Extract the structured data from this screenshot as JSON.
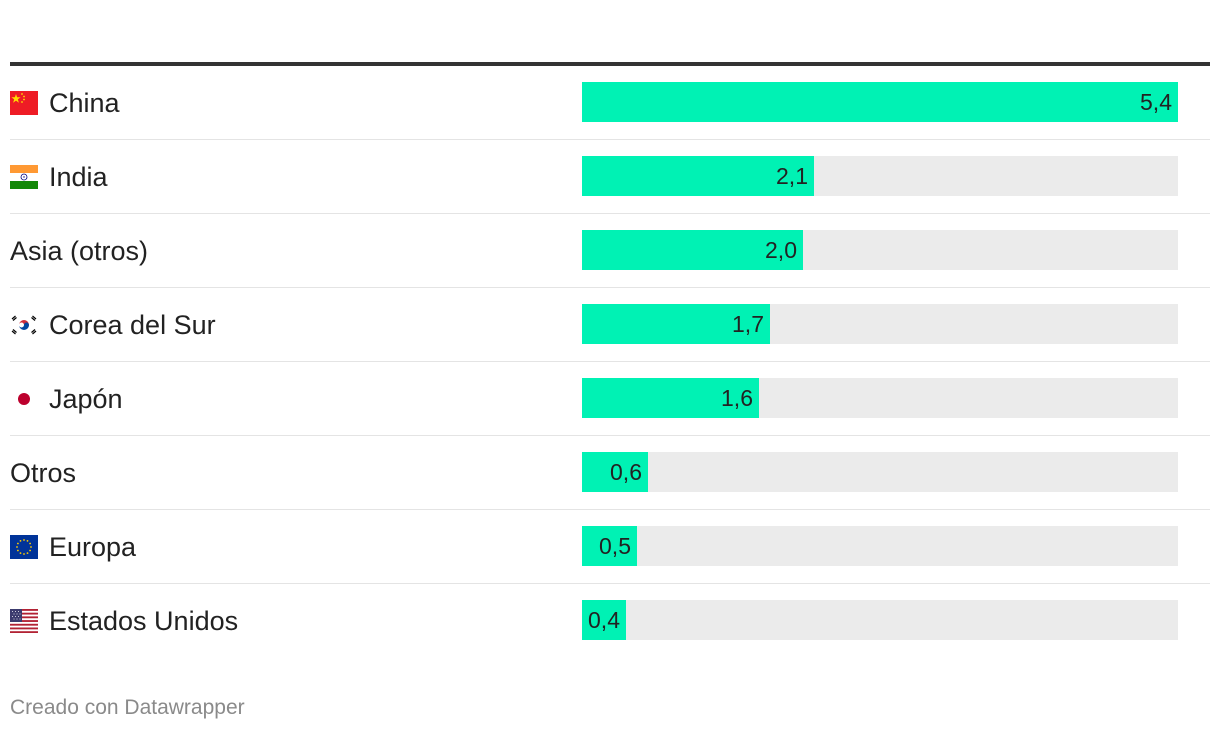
{
  "chart_data": {
    "type": "bar",
    "orientation": "horizontal",
    "categories": [
      "China",
      "India",
      "Asia (otros)",
      "Corea del Sur",
      "Japón",
      "Otros",
      "Europa",
      "Estados Unidos"
    ],
    "values": [
      5.4,
      2.1,
      2.0,
      1.7,
      1.6,
      0.6,
      0.5,
      0.4
    ],
    "value_labels": [
      "5,4",
      "2,1",
      "2,0",
      "1,7",
      "1,6",
      "0,6",
      "0,5",
      "0,4"
    ],
    "xlim": [
      0,
      5.4
    ],
    "bar_color": "#00f2b4",
    "track_color": "#ebebeb"
  },
  "rows": [
    {
      "label": "China",
      "value": 5.4,
      "display": "5,4",
      "flag": "china-flag-icon"
    },
    {
      "label": "India",
      "value": 2.1,
      "display": "2,1",
      "flag": "india-flag-icon"
    },
    {
      "label": "Asia (otros)",
      "value": 2.0,
      "display": "2,0",
      "flag": null
    },
    {
      "label": "Corea del Sur",
      "value": 1.7,
      "display": "1,7",
      "flag": "south-korea-flag-icon"
    },
    {
      "label": "Japón",
      "value": 1.6,
      "display": "1,6",
      "flag": "japan-flag-icon"
    },
    {
      "label": "Otros",
      "value": 0.6,
      "display": "0,6",
      "flag": null
    },
    {
      "label": "Europa",
      "value": 0.5,
      "display": "0,5",
      "flag": "eu-flag-icon"
    },
    {
      "label": "Estados Unidos",
      "value": 0.4,
      "display": "0,4",
      "flag": "usa-flag-icon"
    }
  ],
  "footer": "Creado con Datawrapper"
}
